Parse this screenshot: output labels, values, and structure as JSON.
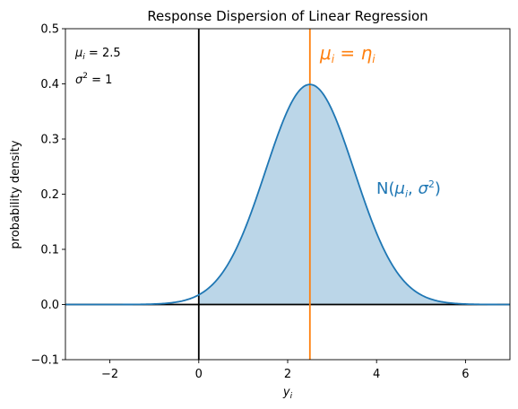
{
  "chart_data": {
    "type": "line",
    "title": "Response Dispersion of Linear Regression",
    "xlabel": "y_i",
    "ylabel": "probability density",
    "xlim": [
      -3,
      7
    ],
    "ylim": [
      -0.1,
      0.5
    ],
    "xticks": [
      -2,
      0,
      2,
      4,
      6
    ],
    "xtick_labels": [
      "−2",
      "0",
      "2",
      "4",
      "6"
    ],
    "yticks": [
      -0.1,
      0.0,
      0.1,
      0.2,
      0.3,
      0.4,
      0.5
    ],
    "ytick_labels": [
      "−0.1",
      "0.0",
      "0.1",
      "0.2",
      "0.3",
      "0.4",
      "0.5"
    ],
    "grid": false,
    "series": [
      {
        "name": "N(μ_i, σ²)",
        "kind": "normal-pdf",
        "mean": 2.5,
        "std": 1,
        "color": "#1f77b4",
        "fill_color": "#1f77b4",
        "fill_opacity": 0.3,
        "fill_range": [
          0,
          7
        ]
      }
    ],
    "reference_lines": [
      {
        "orientation": "vertical",
        "x": 0,
        "color": "#000000"
      },
      {
        "orientation": "horizontal",
        "y": 0,
        "color": "#000000"
      },
      {
        "orientation": "vertical",
        "x": 2.5,
        "color": "#ff7f0e"
      }
    ],
    "annotations": {
      "mu_param_prefix": "μ",
      "mu_param_sub": "i",
      "mu_param_rest": " = 2.5",
      "sigma_param_prefix": "σ",
      "sigma_param_sup": "2",
      "sigma_param_rest": " = 1",
      "mu_line_label_mu": "μ",
      "mu_line_label_sub": "i",
      "mu_line_label_eq": " = ",
      "mu_line_label_eta": "η",
      "mu_line_label_eta_sub": "i",
      "dist_label_prefix": "N(",
      "dist_label_mu": "μ",
      "dist_label_mu_sub": "i",
      "dist_label_sep": ", ",
      "dist_label_sigma": "σ",
      "dist_label_sigma_sup": "2",
      "dist_label_suffix": ")"
    },
    "xlabel_main": "y",
    "xlabel_sub": "i"
  }
}
